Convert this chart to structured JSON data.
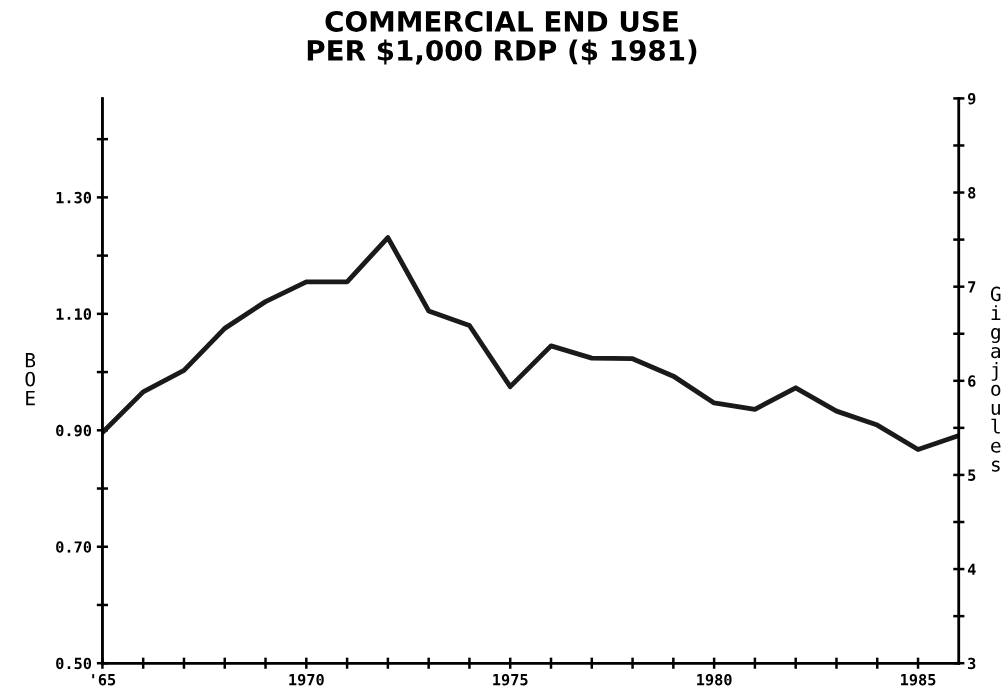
{
  "chart_data": {
    "type": "line",
    "title": "COMMERCIAL END USE\nPER $1,000 RDP ($ 1981)",
    "ylabel": "BOE",
    "y2label": "Gigajoules",
    "x": [
      1965,
      1966,
      1967,
      1968,
      1969,
      1970,
      1971,
      1972,
      1973,
      1974,
      1975,
      1976,
      1977,
      1978,
      1979,
      1980,
      1981,
      1982,
      1983,
      1984,
      1985,
      1986
    ],
    "series": [
      {
        "color": "#1a1a1a",
        "values": [
          0.896,
          0.966,
          1.003,
          1.075,
          1.121,
          1.155,
          1.155,
          1.231,
          1.105,
          1.08,
          0.975,
          1.045,
          1.024,
          1.023,
          0.993,
          0.947,
          0.936,
          0.973,
          0.933,
          0.909,
          0.867,
          0.891
        ]
      }
    ],
    "xlim": [
      1965,
      1986
    ],
    "xticks": [
      {
        "value": 1965,
        "label": "'65"
      },
      {
        "value": 1966,
        "label": null
      },
      {
        "value": 1967,
        "label": null
      },
      {
        "value": 1968,
        "label": null
      },
      {
        "value": 1969,
        "label": null
      },
      1970,
      {
        "value": 1971,
        "label": null
      },
      {
        "value": 1972,
        "label": null
      },
      {
        "value": 1973,
        "label": null
      },
      {
        "value": 1974,
        "label": null
      },
      1975,
      {
        "value": 1976,
        "label": null
      },
      {
        "value": 1977,
        "label": null
      },
      {
        "value": 1978,
        "label": null
      },
      {
        "value": 1979,
        "label": null
      },
      1980,
      {
        "value": 1981,
        "label": null
      },
      {
        "value": 1982,
        "label": null
      },
      {
        "value": 1983,
        "label": null
      },
      {
        "value": 1984,
        "label": null
      },
      1985
    ],
    "ylim": [
      0.5,
      1.47
    ],
    "yticks": [
      {
        "value": 0.5,
        "label": "0.50"
      },
      {
        "value": 0.6,
        "label": null
      },
      {
        "value": 0.7,
        "label": "0.70"
      },
      {
        "value": 0.8,
        "label": null
      },
      {
        "value": 0.9,
        "label": "0.90"
      },
      {
        "value": 1.0,
        "label": null
      },
      {
        "value": 1.1,
        "label": "1.10"
      },
      {
        "value": 1.2,
        "label": null
      },
      {
        "value": 1.3,
        "label": "1.30"
      },
      {
        "value": 1.4,
        "label": null
      }
    ],
    "y2lim": [
      3,
      9
    ],
    "y2ticks": [
      3,
      {
        "value": 3.5,
        "label": null
      },
      4,
      {
        "value": 4.5,
        "label": null
      },
      5,
      {
        "value": 5.5,
        "label": null
      },
      6,
      {
        "value": 6.5,
        "label": null
      },
      7,
      {
        "value": 7.5,
        "label": null
      },
      8,
      {
        "value": 8.5,
        "label": null
      },
      9
    ],
    "grid": false,
    "legend": false,
    "marker": "none",
    "line_style": "solid"
  }
}
